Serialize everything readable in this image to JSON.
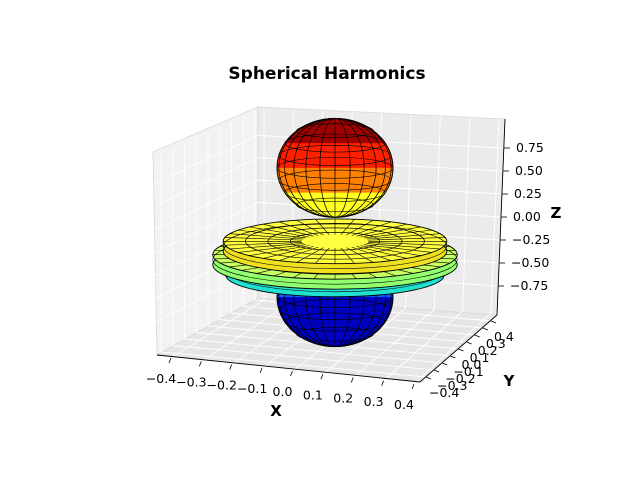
{
  "chart_data": {
    "type": "surface3d",
    "title": "Spherical Harmonics",
    "xlabel": "X",
    "ylabel": "Y",
    "zlabel": "Z",
    "xlim": [
      -0.45,
      0.45
    ],
    "ylim": [
      -0.45,
      0.45
    ],
    "zlim": [
      -1.0,
      1.0
    ],
    "xticks": [
      "−0.4",
      "−0.3",
      "−0.2",
      "−0.1",
      "0.0",
      "0.1",
      "0.2",
      "0.3",
      "0.4"
    ],
    "yticks": [
      "−0.4",
      "−0.3",
      "−0.2",
      "−0.1",
      "0.0",
      "0.1",
      "0.2",
      "0.3",
      "0.4"
    ],
    "zticks": [
      "−0.75",
      "−0.50",
      "−0.25",
      "0.00",
      "0.25",
      "0.50",
      "0.75"
    ],
    "grid": true,
    "colormap": "jet",
    "surface": {
      "lobes": [
        {
          "shape": "sphere",
          "z_min": 0.55,
          "z_max": 1.0,
          "radius": 0.2,
          "colors": [
            "#ffff20",
            "#ff8000",
            "#ff2000",
            "#a00000"
          ]
        },
        {
          "shape": "ring",
          "z": 0.1,
          "radius": 0.43,
          "colors": [
            "#ffff40",
            "#f0e020"
          ]
        },
        {
          "shape": "ring",
          "z": -0.1,
          "radius": 0.47,
          "colors": [
            "#c8ff60",
            "#90ff70"
          ]
        },
        {
          "shape": "ring",
          "z": -0.35,
          "radius": 0.42,
          "colors": [
            "#40ffb0",
            "#20e0d0"
          ]
        },
        {
          "shape": "sphere",
          "z_min": -1.0,
          "z_max": -0.55,
          "radius": 0.2,
          "colors": [
            "#1060ff",
            "#0000c0"
          ]
        }
      ]
    }
  }
}
